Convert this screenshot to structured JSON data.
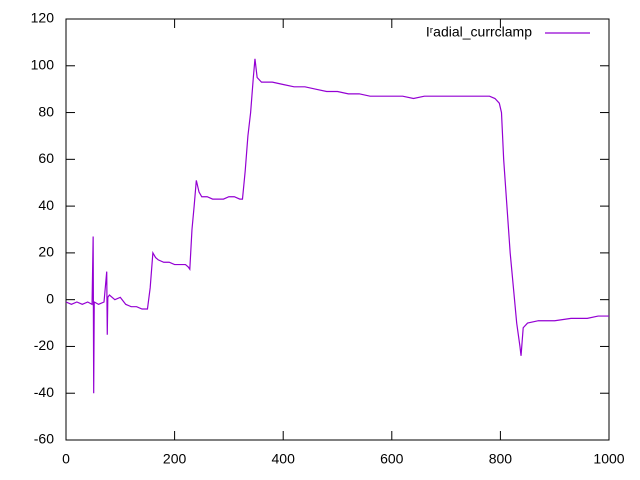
{
  "chart_data": {
    "type": "line",
    "x": [
      0,
      10,
      20,
      30,
      40,
      48,
      50,
      51,
      52,
      60,
      70,
      75,
      76,
      77,
      80,
      90,
      100,
      110,
      120,
      130,
      140,
      150,
      155,
      160,
      165,
      170,
      180,
      190,
      200,
      210,
      220,
      225,
      228,
      232,
      236,
      240,
      245,
      250,
      260,
      270,
      280,
      290,
      300,
      310,
      320,
      325,
      330,
      335,
      340,
      345,
      348,
      352,
      360,
      380,
      400,
      420,
      440,
      460,
      480,
      500,
      520,
      540,
      560,
      580,
      600,
      620,
      640,
      660,
      680,
      700,
      720,
      740,
      760,
      780,
      790,
      798,
      802,
      806,
      812,
      818,
      824,
      830,
      836,
      838,
      842,
      850,
      870,
      900,
      930,
      960,
      980,
      1000
    ],
    "series": [
      {
        "name": "Iʳadial_currclamp",
        "color": "#9400d3",
        "values": [
          -1,
          -2,
          -1,
          -2,
          -1,
          -2,
          27,
          -40,
          -1,
          -2,
          -1,
          12,
          -15,
          1,
          2,
          0,
          1,
          -2,
          -3,
          -3,
          -4,
          -4,
          5,
          20,
          18,
          17,
          16,
          16,
          15,
          15,
          15,
          14,
          13,
          30,
          40,
          51,
          46,
          44,
          44,
          43,
          43,
          43,
          44,
          44,
          43,
          43,
          55,
          70,
          80,
          95,
          103,
          95,
          93,
          93,
          92,
          91,
          91,
          90,
          89,
          89,
          88,
          88,
          87,
          87,
          87,
          87,
          86,
          87,
          87,
          87,
          87,
          87,
          87,
          87,
          86,
          84,
          80,
          60,
          40,
          20,
          5,
          -10,
          -20,
          -24,
          -12,
          -10,
          -9,
          -9,
          -8,
          -8,
          -7,
          -7
        ]
      }
    ],
    "xlim": [
      0,
      1000
    ],
    "xticks": [
      0,
      200,
      400,
      600,
      800,
      1000
    ],
    "ylim": [
      -60,
      120
    ],
    "yticks": [
      -60,
      -40,
      -20,
      0,
      20,
      40,
      60,
      80,
      100,
      120
    ],
    "legend": "top-right"
  }
}
